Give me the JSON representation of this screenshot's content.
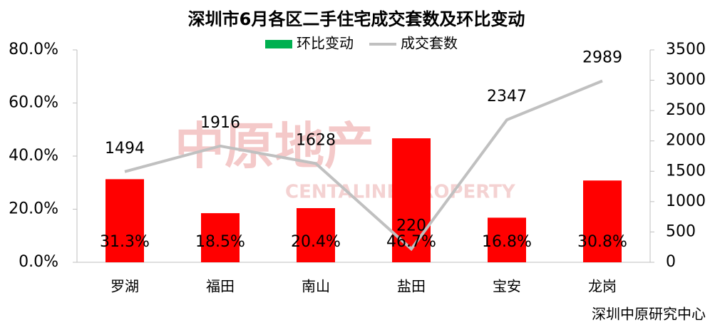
{
  "chart_data": {
    "type": "bar_line",
    "title": "深圳市6月各区二手住宅成交套数及环比变动",
    "categories": [
      "罗湖",
      "福田",
      "南山",
      "盐田",
      "宝安",
      "龙岗"
    ],
    "series": [
      {
        "name": "环比变动",
        "type": "bar",
        "color": "#ff0000",
        "legend_color": "#00b050",
        "values": [
          31.3,
          18.5,
          20.4,
          46.7,
          16.8,
          30.8
        ],
        "value_labels": [
          "31.3%",
          "18.5%",
          "20.4%",
          "46.7%",
          "16.8%",
          "30.8%"
        ]
      },
      {
        "name": "成交套数",
        "type": "line",
        "axis": "y2",
        "color": "#c0c0c0",
        "values": [
          1494,
          1916,
          1628,
          220,
          2347,
          2989
        ]
      }
    ],
    "ylim": [
      0,
      80
    ],
    "yticks": [
      {
        "value": 0,
        "label": "0.0%"
      },
      {
        "value": 20,
        "label": "20.0%"
      },
      {
        "value": 40,
        "label": "40.0%"
      },
      {
        "value": 60,
        "label": "60.0%"
      },
      {
        "value": 80,
        "label": "80.0%"
      }
    ],
    "y2lim": [
      0,
      3500
    ],
    "y2ticks": [
      0,
      500,
      1000,
      1500,
      2000,
      2500,
      3000,
      3500
    ],
    "watermark": [
      "中原地产",
      "CENTALINE PROPERTY"
    ],
    "source": "深圳中原研究中心"
  }
}
